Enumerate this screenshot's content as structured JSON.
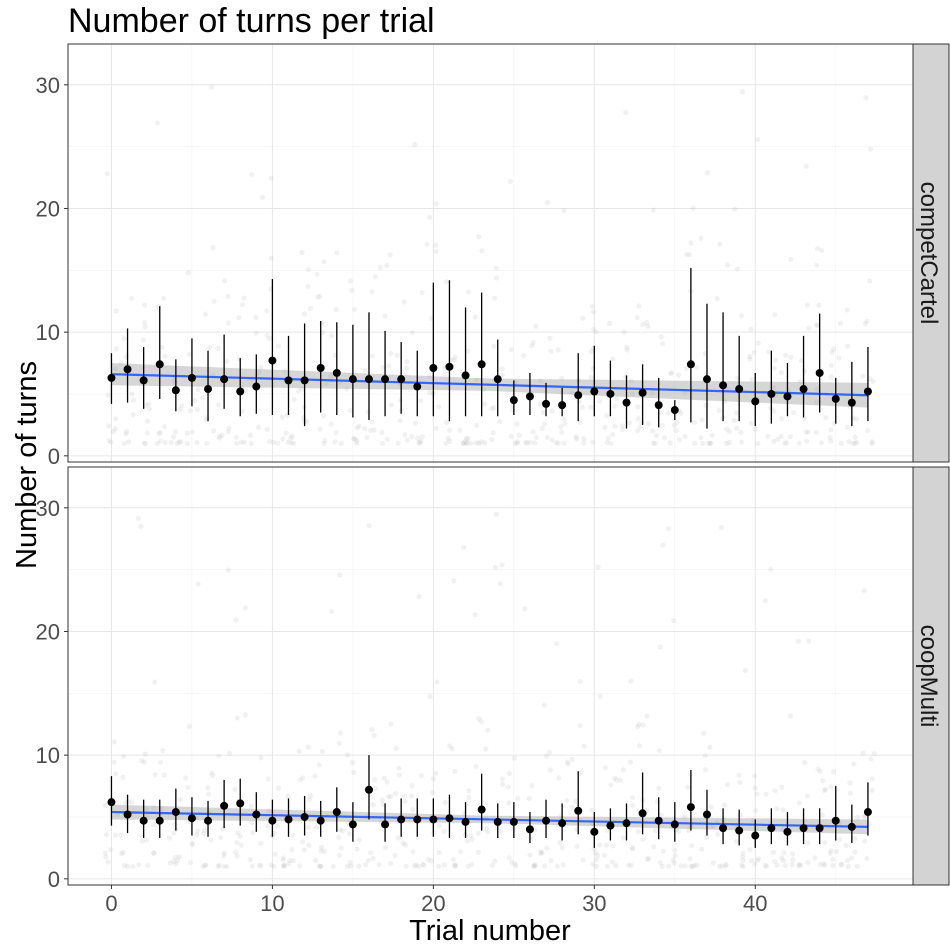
{
  "chart_data": {
    "type": "scatter",
    "title": "Number of turns per trial",
    "xlabel": "Trial number",
    "ylabel": "Number of turns",
    "xlim": [
      -2.7,
      49.8
    ],
    "ylim": [
      -0.5,
      33.3
    ],
    "x_ticks": [
      0,
      10,
      20,
      30,
      40
    ],
    "y_ticks": [
      0,
      10,
      20,
      30
    ],
    "grid": true,
    "colors": {
      "raw_points": "#bdbdbd",
      "mean_points": "#000000",
      "trend_line": "#3366ff",
      "confidence_band": "#999999",
      "strip_background": "#d3d3d3"
    },
    "panels": [
      {
        "label": "competCartel",
        "trend": {
          "start": [
            0,
            6.6
          ],
          "end": [
            47,
            4.9
          ]
        },
        "band": {
          "start_halfwidth": 0.9,
          "mid_halfwidth": 0.5,
          "end_halfwidth": 1.0
        },
        "trials": [
          0,
          1,
          2,
          3,
          4,
          5,
          6,
          7,
          8,
          9,
          10,
          11,
          12,
          13,
          14,
          15,
          16,
          17,
          18,
          19,
          20,
          21,
          22,
          23,
          24,
          25,
          26,
          27,
          28,
          29,
          30,
          31,
          32,
          33,
          34,
          35,
          36,
          37,
          38,
          39,
          40,
          41,
          42,
          43,
          44,
          45,
          46,
          47
        ],
        "mean": [
          6.3,
          7.0,
          6.1,
          7.4,
          5.3,
          6.3,
          5.4,
          6.2,
          5.2,
          5.6,
          7.7,
          6.1,
          6.1,
          7.1,
          6.7,
          6.2,
          6.2,
          6.2,
          6.2,
          5.6,
          7.1,
          7.2,
          6.5,
          7.4,
          6.2,
          4.5,
          4.8,
          4.2,
          4.1,
          4.9,
          5.2,
          5.0,
          4.3,
          5.1,
          4.1,
          3.7,
          7.4,
          6.2,
          5.7,
          5.4,
          4.4,
          5.0,
          4.8,
          5.4,
          6.7,
          4.6,
          4.3,
          5.2
        ],
        "lower": [
          4.2,
          4.3,
          3.8,
          4.6,
          3.6,
          4.0,
          2.8,
          3.8,
          3.2,
          3.4,
          3.3,
          3.3,
          2.4,
          3.5,
          3.3,
          3.1,
          2.9,
          3.2,
          3.4,
          3.2,
          3.2,
          2.8,
          3.2,
          3.2,
          3.2,
          3.3,
          3.3,
          3.2,
          3.2,
          2.8,
          3.2,
          3.2,
          2.2,
          2.5,
          2.3,
          2.9,
          2.7,
          2.2,
          2.8,
          2.8,
          2.4,
          2.6,
          3.2,
          3.1,
          3.5,
          2.6,
          2.4,
          2.8
        ],
        "upper": [
          8.3,
          10.3,
          8.8,
          12.1,
          7.8,
          9.5,
          8.5,
          9.8,
          7.9,
          8.2,
          14.3,
          9.7,
          10.7,
          10.9,
          10.8,
          10.6,
          11.6,
          10.1,
          9.2,
          8.5,
          14.0,
          14.2,
          12.0,
          13.2,
          9.4,
          6.1,
          6.7,
          5.9,
          5.5,
          8.3,
          8.9,
          7.7,
          6.5,
          7.4,
          6.3,
          4.5,
          15.2,
          12.3,
          11.6,
          9.7,
          6.7,
          8.5,
          7.5,
          9.7,
          11.5,
          6.3,
          7.6,
          8.8
        ]
      },
      {
        "label": "coopMulti",
        "trend": {
          "start": [
            0,
            5.4
          ],
          "end": [
            47,
            4.2
          ]
        },
        "band": {
          "start_halfwidth": 0.6,
          "mid_halfwidth": 0.3,
          "end_halfwidth": 0.6
        },
        "trials": [
          0,
          1,
          2,
          3,
          4,
          5,
          6,
          7,
          8,
          9,
          10,
          11,
          12,
          13,
          14,
          15,
          16,
          17,
          18,
          19,
          20,
          21,
          22,
          23,
          24,
          25,
          26,
          27,
          28,
          29,
          30,
          31,
          32,
          33,
          34,
          35,
          36,
          37,
          38,
          39,
          40,
          41,
          42,
          43,
          44,
          45,
          46,
          47
        ],
        "mean": [
          6.2,
          5.2,
          4.7,
          4.7,
          5.4,
          4.9,
          4.7,
          5.9,
          6.1,
          5.2,
          4.7,
          4.8,
          5.0,
          4.7,
          5.4,
          4.4,
          7.2,
          4.4,
          4.8,
          4.8,
          4.8,
          4.9,
          4.6,
          5.6,
          4.6,
          4.6,
          4.0,
          4.7,
          4.5,
          5.5,
          3.8,
          4.3,
          4.5,
          5.3,
          4.7,
          4.4,
          5.8,
          5.2,
          4.1,
          3.9,
          3.5,
          4.1,
          3.8,
          4.1,
          4.1,
          4.7,
          4.2,
          5.4
        ],
        "lower": [
          4.3,
          3.7,
          3.3,
          3.3,
          3.9,
          3.5,
          3.4,
          4.1,
          4.3,
          3.8,
          3.4,
          3.4,
          3.5,
          3.4,
          3.8,
          3.0,
          4.8,
          3.0,
          3.4,
          3.4,
          3.4,
          3.3,
          3.3,
          3.9,
          3.3,
          3.3,
          2.9,
          3.3,
          3.1,
          3.6,
          2.5,
          3.1,
          3.1,
          3.6,
          3.2,
          3.0,
          3.9,
          3.5,
          2.8,
          2.7,
          2.5,
          2.8,
          2.7,
          2.8,
          2.8,
          3.1,
          2.9,
          3.5
        ],
        "upper": [
          8.3,
          6.8,
          6.4,
          6.4,
          7.3,
          6.6,
          6.3,
          8.0,
          8.1,
          7.0,
          6.4,
          6.5,
          6.7,
          6.3,
          7.4,
          6.2,
          10.0,
          6.1,
          6.5,
          6.5,
          6.5,
          6.8,
          6.2,
          8.5,
          6.1,
          6.2,
          5.4,
          6.4,
          6.1,
          8.7,
          5.4,
          5.7,
          6.1,
          8.6,
          6.6,
          6.2,
          8.8,
          7.2,
          5.7,
          5.6,
          4.8,
          5.7,
          5.4,
          5.7,
          5.7,
          7.5,
          6.0,
          7.8
        ]
      }
    ]
  }
}
